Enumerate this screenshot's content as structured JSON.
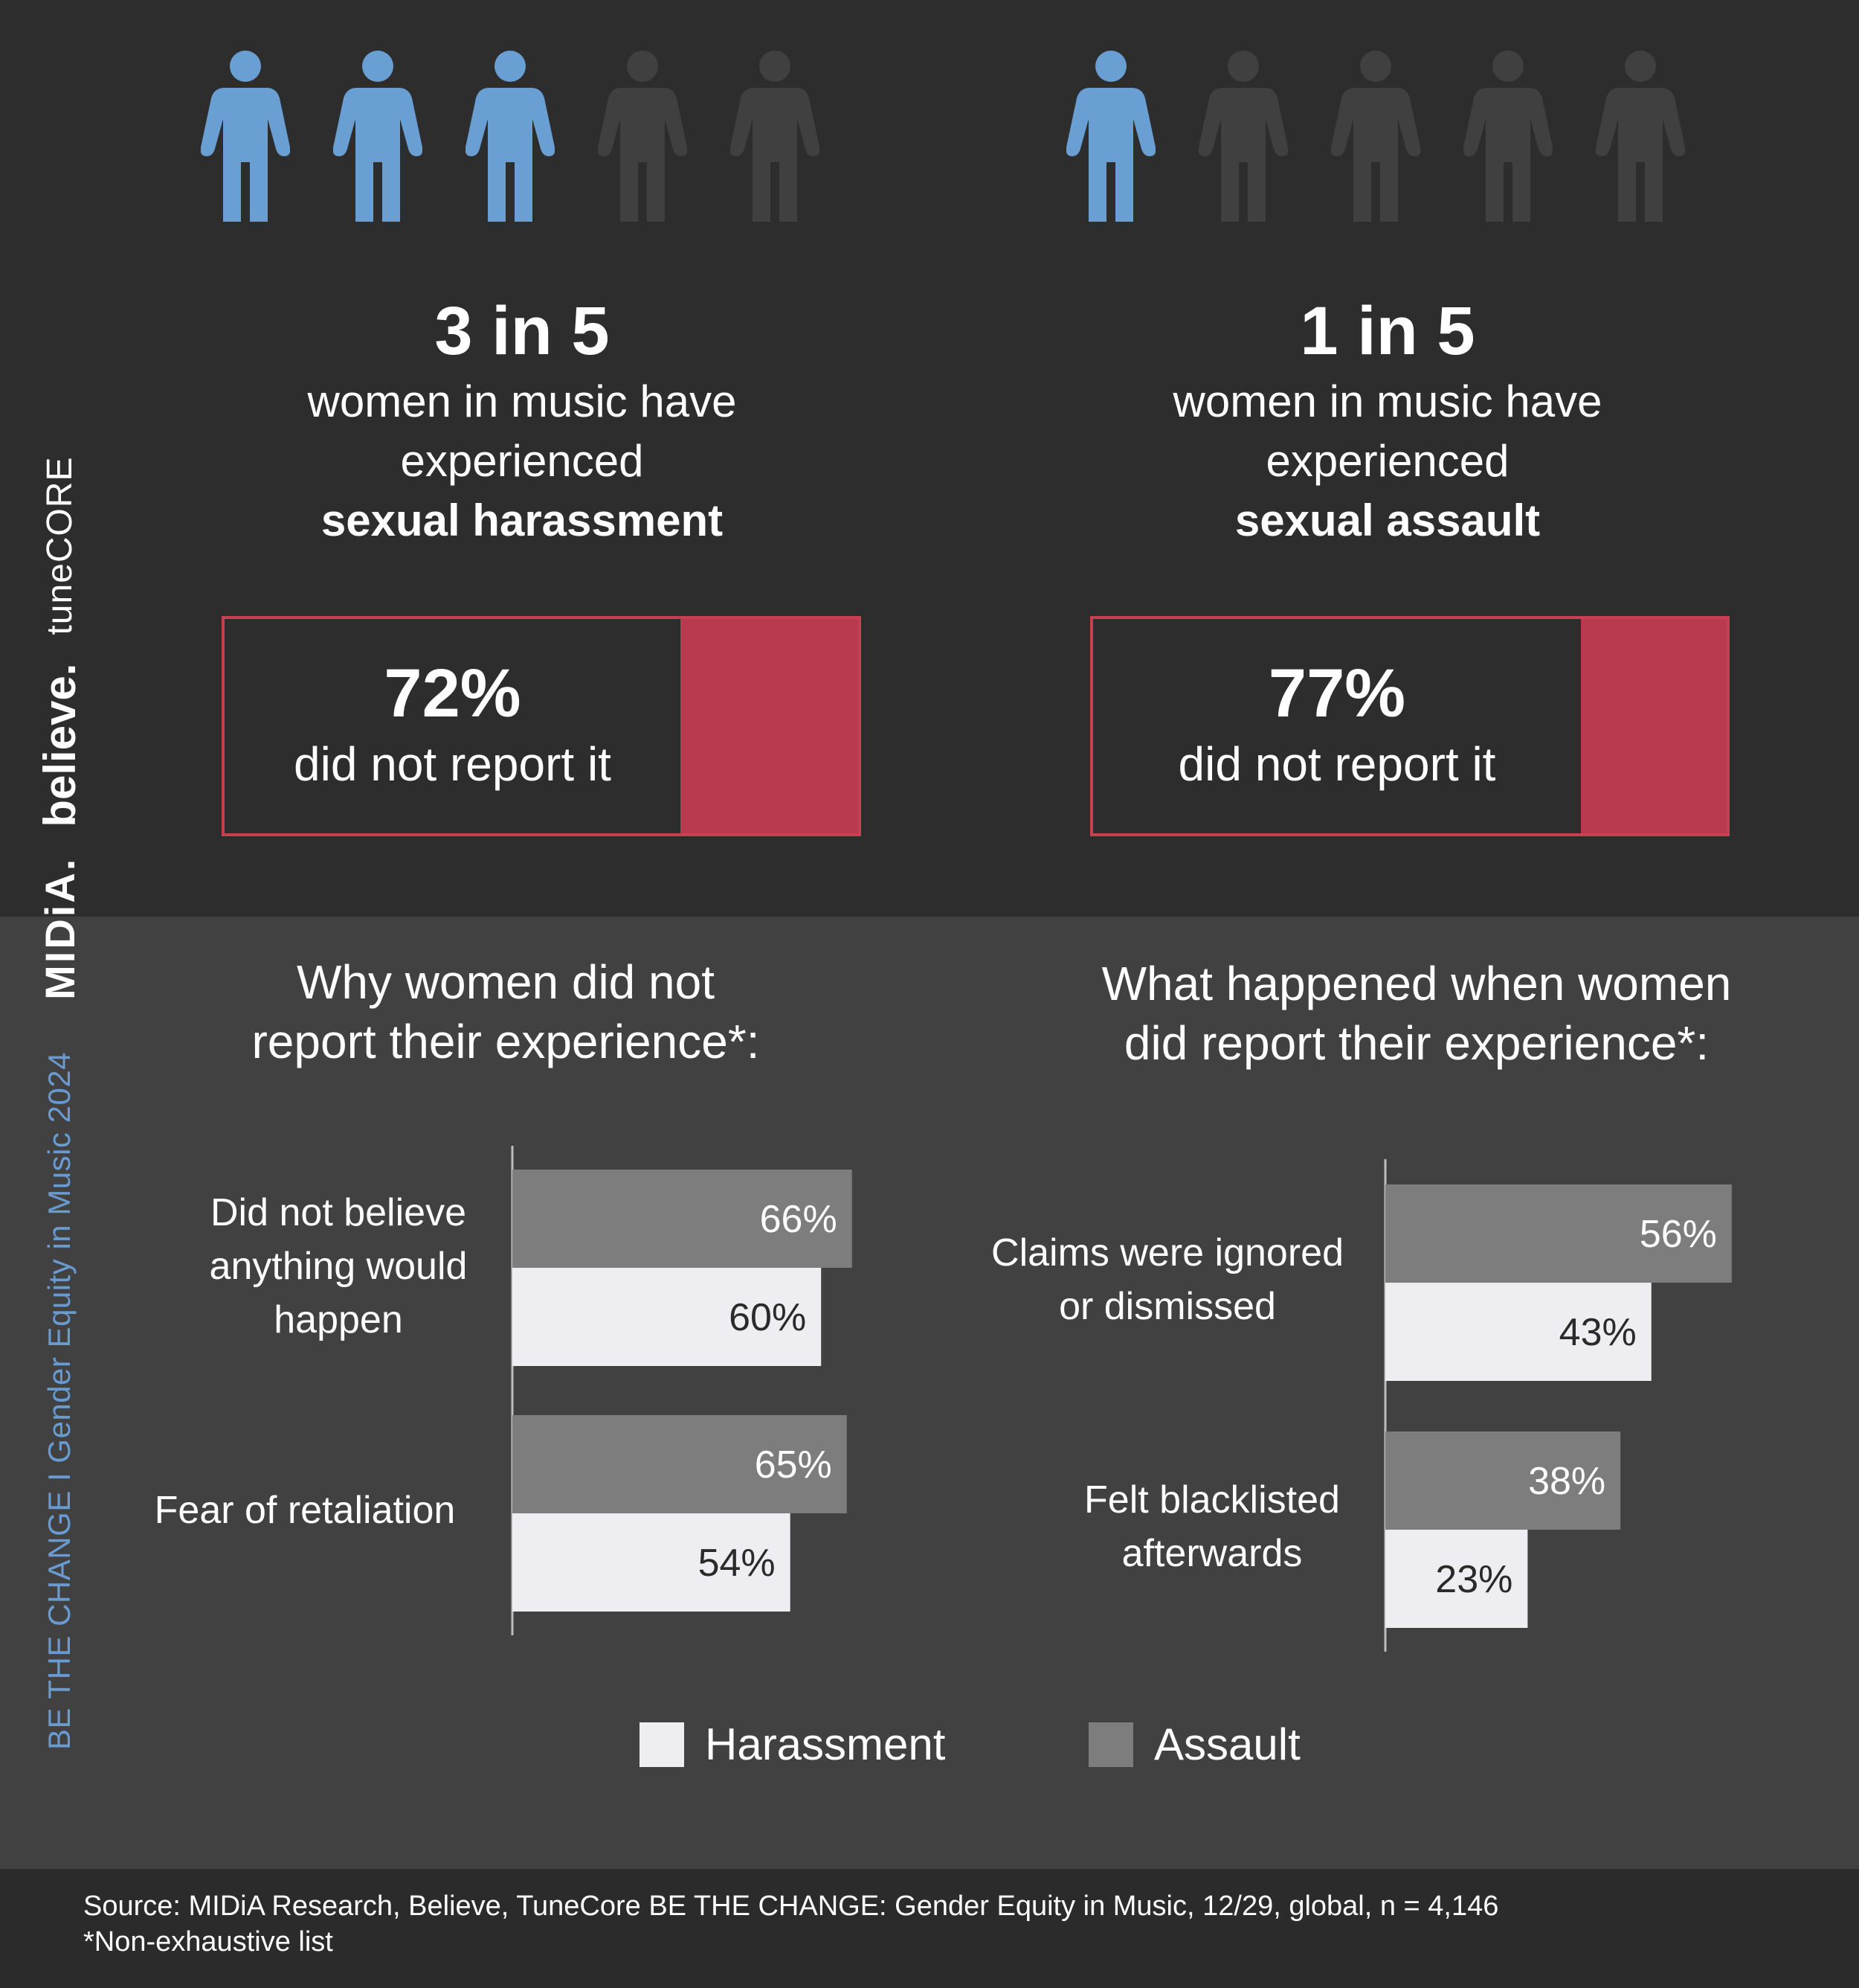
{
  "side_banner": {
    "tagline": "BE THE CHANGE I Gender Equity in Music 2024",
    "brand_midia": "MIDiA.",
    "brand_believe": "believe.",
    "brand_tunecore": "tuneCORE"
  },
  "colors": {
    "highlight_blue": "#6a9fd4",
    "muted_figure": "#404040",
    "report_red": "#b93a4f",
    "harassment_bar": "#eeeef2",
    "assault_bar": "#7d7d7d"
  },
  "harassment_stat": {
    "figures_highlighted": 3,
    "figures_total": 5,
    "headline": "3 in 5",
    "line1": "women in music have",
    "line2": "experienced",
    "line3": "sexual harassment",
    "not_reported_pct": "72%",
    "not_reported_value": 0.72,
    "not_reported_label": "did not report it"
  },
  "assault_stat": {
    "figures_highlighted": 1,
    "figures_total": 5,
    "headline": "1 in 5",
    "line1": "women in music have",
    "line2": "experienced",
    "line3": "sexual assault",
    "not_reported_pct": "77%",
    "not_reported_value": 0.77,
    "not_reported_label": "did not report it"
  },
  "chart_data": [
    {
      "type": "bar",
      "orientation": "horizontal",
      "title_line1": "Why women did not",
      "title_line2": "report their experience*:",
      "categories": [
        "Did not believe anything would happen",
        "Fear of retaliation"
      ],
      "category_lines": [
        [
          "Did not believe",
          "anything would",
          "happen"
        ],
        [
          "Fear of retaliation"
        ]
      ],
      "series": [
        {
          "name": "Assault",
          "values": [
            66,
            65
          ],
          "labels": [
            "66%",
            "65%"
          ]
        },
        {
          "name": "Harassment",
          "values": [
            60,
            54
          ],
          "labels": [
            "60%",
            "54%"
          ]
        }
      ],
      "xlim": [
        0,
        100
      ]
    },
    {
      "type": "bar",
      "orientation": "horizontal",
      "title_line1": "What happened when women",
      "title_line2": "did report their experience*:",
      "categories": [
        "Claims were ignored or dismissed",
        "Felt blacklisted afterwards"
      ],
      "category_lines": [
        [
          "Claims were ignored",
          "or dismissed"
        ],
        [
          "Felt blacklisted",
          "afterwards"
        ]
      ],
      "series": [
        {
          "name": "Assault",
          "values": [
            56,
            38
          ],
          "labels": [
            "56%",
            "38%"
          ]
        },
        {
          "name": "Harassment",
          "values": [
            43,
            23
          ],
          "labels": [
            "43%",
            "23%"
          ]
        }
      ],
      "xlim": [
        0,
        100
      ]
    }
  ],
  "legend": {
    "harassment": "Harassment",
    "assault": "Assault"
  },
  "footer": {
    "source": "Source: MIDiA Research, Believe, TuneCore BE THE CHANGE: Gender Equity in Music, 12/29, global, n = 4,146",
    "note": "*Non-exhaustive list"
  }
}
